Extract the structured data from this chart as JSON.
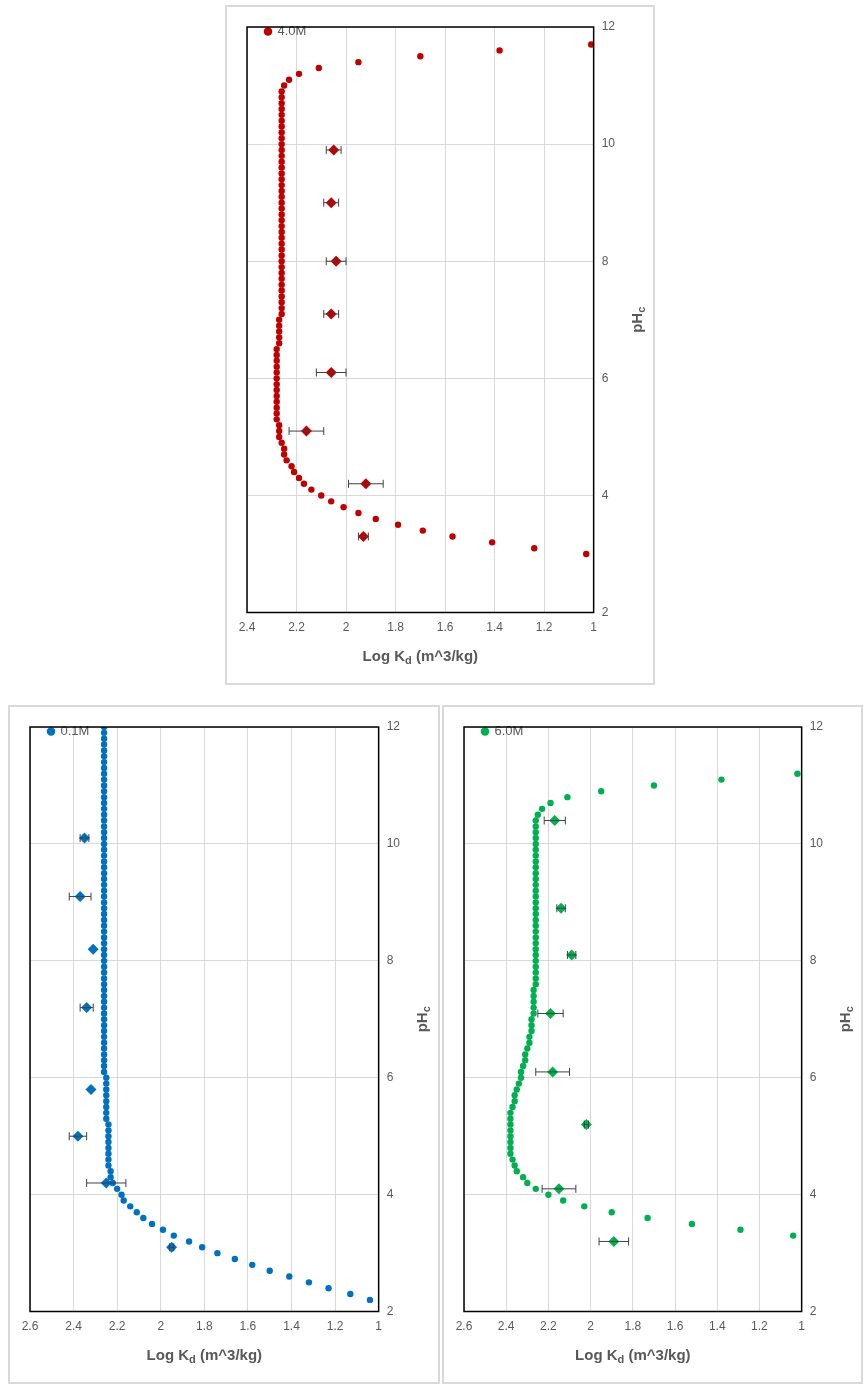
{
  "chart_data": [
    {
      "type": "scatter",
      "xlabel": "Log K$_{d}$ (m^3/kg)",
      "ylabel": "pH$_{c}$",
      "xlim": [
        2.4,
        1
      ],
      "xticks": [
        2.4,
        2.2,
        2,
        1.8,
        1.6,
        1.4,
        1.2,
        1
      ],
      "ylim": [
        2,
        12
      ],
      "yticks": [
        2,
        4,
        6,
        8,
        10,
        12
      ],
      "grid": true,
      "legend": "top left",
      "series": [
        {
          "name": "4.0M",
          "color": "#c00000",
          "marker": "circle",
          "x": [
            1.03,
            1.24,
            1.41,
            1.57,
            1.69,
            1.79,
            1.88,
            1.95,
            2.01,
            2.06,
            2.1,
            2.14,
            2.17,
            2.19,
            2.21,
            2.22,
            2.24,
            2.25,
            2.25,
            2.26,
            2.27,
            2.27,
            2.27,
            2.28,
            2.28,
            2.28,
            2.28,
            2.28,
            2.28,
            2.28,
            2.28,
            2.28,
            2.28,
            2.28,
            2.28,
            2.28,
            2.27,
            2.27,
            2.27,
            2.27,
            2.27,
            2.26,
            2.26,
            2.26,
            2.26,
            2.26,
            2.26,
            2.26,
            2.26,
            2.26,
            2.26,
            2.26,
            2.26,
            2.26,
            2.26,
            2.26,
            2.26,
            2.26,
            2.26,
            2.26,
            2.26,
            2.26,
            2.26,
            2.26,
            2.26,
            2.26,
            2.26,
            2.26,
            2.26,
            2.26,
            2.26,
            2.26,
            2.26,
            2.26,
            2.26,
            2.26,
            2.26,
            2.26,
            2.26,
            2.26,
            2.25,
            2.23,
            2.19,
            2.11,
            1.95,
            1.7,
            1.38,
            1.01
          ],
          "values": [
            3,
            3.1,
            3.2,
            3.3,
            3.4,
            3.5,
            3.6,
            3.7,
            3.8,
            3.9,
            4,
            4.1,
            4.2,
            4.3,
            4.4,
            4.5,
            4.6,
            4.7,
            4.8,
            4.9,
            5,
            5.1,
            5.2,
            5.3,
            5.4,
            5.5,
            5.6,
            5.7,
            5.8,
            5.9,
            6,
            6.1,
            6.2,
            6.3,
            6.4,
            6.5,
            6.6,
            6.7,
            6.8,
            6.9,
            7,
            7.1,
            7.2,
            7.3,
            7.4,
            7.5,
            7.6,
            7.7,
            7.8,
            7.9,
            8,
            8.1,
            8.2,
            8.3,
            8.4,
            8.5,
            8.6,
            8.7,
            8.8,
            8.9,
            9,
            9.1,
            9.2,
            9.3,
            9.4,
            9.5,
            9.6,
            9.7,
            9.8,
            9.9,
            10,
            10.1,
            10.2,
            10.3,
            10.4,
            10.5,
            10.6,
            10.7,
            10.8,
            10.9,
            11,
            11.1,
            11.2,
            11.3,
            11.4,
            11.5,
            11.6,
            11.7
          ]
        },
        {
          "color": "#c00000",
          "marker": "diamond",
          "x": [
            1.93,
            1.92,
            2.16,
            2.06,
            2.06,
            2.04,
            2.06,
            2.05
          ],
          "values": [
            3.3,
            4.2,
            5.1,
            6.1,
            7.1,
            8,
            9,
            9.9
          ],
          "xerrors": [
            0.02,
            0.07,
            0.07,
            0.06,
            0.03,
            0.04,
            0.03,
            0.03
          ]
        }
      ]
    },
    {
      "type": "scatter",
      "xlabel": "Log K$_{d}$ (m^3/kg)",
      "ylabel": "pH$_{c}$",
      "xlim": [
        2.6,
        1
      ],
      "xticks": [
        2.6,
        2.4,
        2.2,
        2,
        1.8,
        1.6,
        1.4,
        1.2,
        1
      ],
      "ylim": [
        2,
        12
      ],
      "yticks": [
        2,
        4,
        6,
        8,
        10,
        12
      ],
      "grid": true,
      "legend": "top left",
      "series": [
        {
          "name": "0.1M",
          "color": "#0070c0",
          "marker": "circle",
          "x": [
            1.04,
            1.13,
            1.23,
            1.32,
            1.41,
            1.5,
            1.58,
            1.66,
            1.74,
            1.81,
            1.87,
            1.94,
            1.99,
            2.04,
            2.08,
            2.11,
            2.14,
            2.17,
            2.18,
            2.2,
            2.22,
            2.23,
            2.23,
            2.24,
            2.24,
            2.24,
            2.24,
            2.24,
            2.24,
            2.24,
            2.24,
            2.25,
            2.25,
            2.25,
            2.25,
            2.25,
            2.25,
            2.25,
            2.25,
            2.26,
            2.26,
            2.26,
            2.26,
            2.26,
            2.26,
            2.26,
            2.26,
            2.26,
            2.26,
            2.26,
            2.26,
            2.26,
            2.26,
            2.26,
            2.26,
            2.26,
            2.26,
            2.26,
            2.26,
            2.26,
            2.26,
            2.26,
            2.26,
            2.26,
            2.26,
            2.26,
            2.26,
            2.26,
            2.26,
            2.26,
            2.26,
            2.26,
            2.26,
            2.26,
            2.26,
            2.26,
            2.26,
            2.26,
            2.26,
            2.26,
            2.26,
            2.26,
            2.26,
            2.26,
            2.26,
            2.26,
            2.26,
            2.26,
            2.26,
            2.26,
            2.26,
            2.26,
            2.26,
            2.26,
            2.26,
            2.26,
            2.26,
            2.26,
            2.26
          ],
          "values": [
            2.2,
            2.3,
            2.4,
            2.5,
            2.6,
            2.7,
            2.8,
            2.9,
            3,
            3.1,
            3.2,
            3.3,
            3.4,
            3.5,
            3.6,
            3.7,
            3.8,
            3.9,
            4,
            4.1,
            4.2,
            4.3,
            4.4,
            4.5,
            4.6,
            4.7,
            4.8,
            4.9,
            5,
            5.1,
            5.2,
            5.3,
            5.4,
            5.5,
            5.6,
            5.7,
            5.8,
            5.9,
            6,
            6.1,
            6.2,
            6.3,
            6.4,
            6.5,
            6.6,
            6.7,
            6.8,
            6.9,
            7,
            7.1,
            7.2,
            7.3,
            7.4,
            7.5,
            7.6,
            7.7,
            7.8,
            7.9,
            8,
            8.1,
            8.2,
            8.3,
            8.4,
            8.5,
            8.6,
            8.7,
            8.8,
            8.9,
            9,
            9.1,
            9.2,
            9.3,
            9.4,
            9.5,
            9.6,
            9.7,
            9.8,
            9.9,
            10,
            10.1,
            10.2,
            10.3,
            10.4,
            10.5,
            10.6,
            10.7,
            10.8,
            10.9,
            11,
            11.1,
            11.2,
            11.3,
            11.4,
            11.5,
            11.6,
            11.7,
            11.8,
            11.9,
            12
          ]
        },
        {
          "color": "#0070c0",
          "marker": "diamond",
          "x": [
            1.95,
            2.25,
            2.38,
            2.32,
            2.34,
            2.31,
            2.37,
            2.35
          ],
          "values": [
            3.1,
            4.2,
            5,
            5.8,
            7.2,
            8.2,
            9.1,
            10.1
          ],
          "xerrors": [
            0.01,
            0.09,
            0.04,
            null,
            0.03,
            null,
            0.05,
            0.02
          ]
        }
      ]
    },
    {
      "type": "scatter",
      "xlabel": "Log K$_{d}$ (m^3/kg)",
      "ylabel": "pH$_{c}$",
      "xlim": [
        2.6,
        1
      ],
      "xticks": [
        2.6,
        2.4,
        2.2,
        2,
        1.8,
        1.6,
        1.4,
        1.2,
        1
      ],
      "ylim": [
        2,
        12
      ],
      "yticks": [
        2,
        4,
        6,
        8,
        10,
        12
      ],
      "grid": true,
      "legend": "top left",
      "series": [
        {
          "name": "6.0M",
          "color": "#00b050",
          "marker": "circle",
          "x": [
            1.04,
            1.29,
            1.52,
            1.73,
            1.9,
            2.03,
            2.13,
            2.2,
            2.26,
            2.3,
            2.32,
            2.35,
            2.36,
            2.37,
            2.38,
            2.38,
            2.38,
            2.38,
            2.38,
            2.38,
            2.38,
            2.38,
            2.37,
            2.36,
            2.36,
            2.35,
            2.34,
            2.33,
            2.33,
            2.32,
            2.31,
            2.31,
            2.3,
            2.29,
            2.29,
            2.28,
            2.28,
            2.28,
            2.27,
            2.27,
            2.27,
            2.27,
            2.27,
            2.26,
            2.26,
            2.26,
            2.26,
            2.26,
            2.26,
            2.26,
            2.26,
            2.26,
            2.26,
            2.26,
            2.26,
            2.26,
            2.26,
            2.26,
            2.26,
            2.26,
            2.26,
            2.26,
            2.26,
            2.26,
            2.26,
            2.26,
            2.26,
            2.26,
            2.26,
            2.26,
            2.26,
            2.26,
            2.25,
            2.23,
            2.19,
            2.11,
            1.95,
            1.7,
            1.38,
            1.02
          ],
          "values": [
            3.3,
            3.4,
            3.5,
            3.6,
            3.7,
            3.8,
            3.9,
            4,
            4.1,
            4.2,
            4.3,
            4.4,
            4.5,
            4.6,
            4.7,
            4.8,
            4.9,
            5,
            5.1,
            5.2,
            5.3,
            5.4,
            5.5,
            5.6,
            5.7,
            5.8,
            5.9,
            6,
            6.1,
            6.2,
            6.3,
            6.4,
            6.5,
            6.6,
            6.7,
            6.8,
            6.9,
            7,
            7.1,
            7.2,
            7.3,
            7.4,
            7.5,
            7.6,
            7.7,
            7.8,
            7.9,
            8,
            8.1,
            8.2,
            8.3,
            8.4,
            8.5,
            8.6,
            8.7,
            8.8,
            8.9,
            9,
            9.1,
            9.2,
            9.3,
            9.4,
            9.5,
            9.6,
            9.7,
            9.8,
            9.9,
            10,
            10.1,
            10.2,
            10.3,
            10.4,
            10.5,
            10.6,
            10.7,
            10.8,
            10.9,
            11,
            11.1,
            11.2
          ]
        },
        {
          "color": "#00b050",
          "marker": "diamond",
          "x": [
            1.89,
            2.15,
            2.02,
            2.18,
            2.19,
            2.09,
            2.14,
            2.17
          ],
          "values": [
            3.2,
            4.1,
            5.2,
            6.1,
            7.1,
            8.1,
            8.9,
            10.4
          ],
          "xerrors": [
            0.07,
            0.08,
            0.01,
            0.08,
            0.06,
            0.02,
            0.02,
            0.05
          ]
        }
      ]
    }
  ]
}
